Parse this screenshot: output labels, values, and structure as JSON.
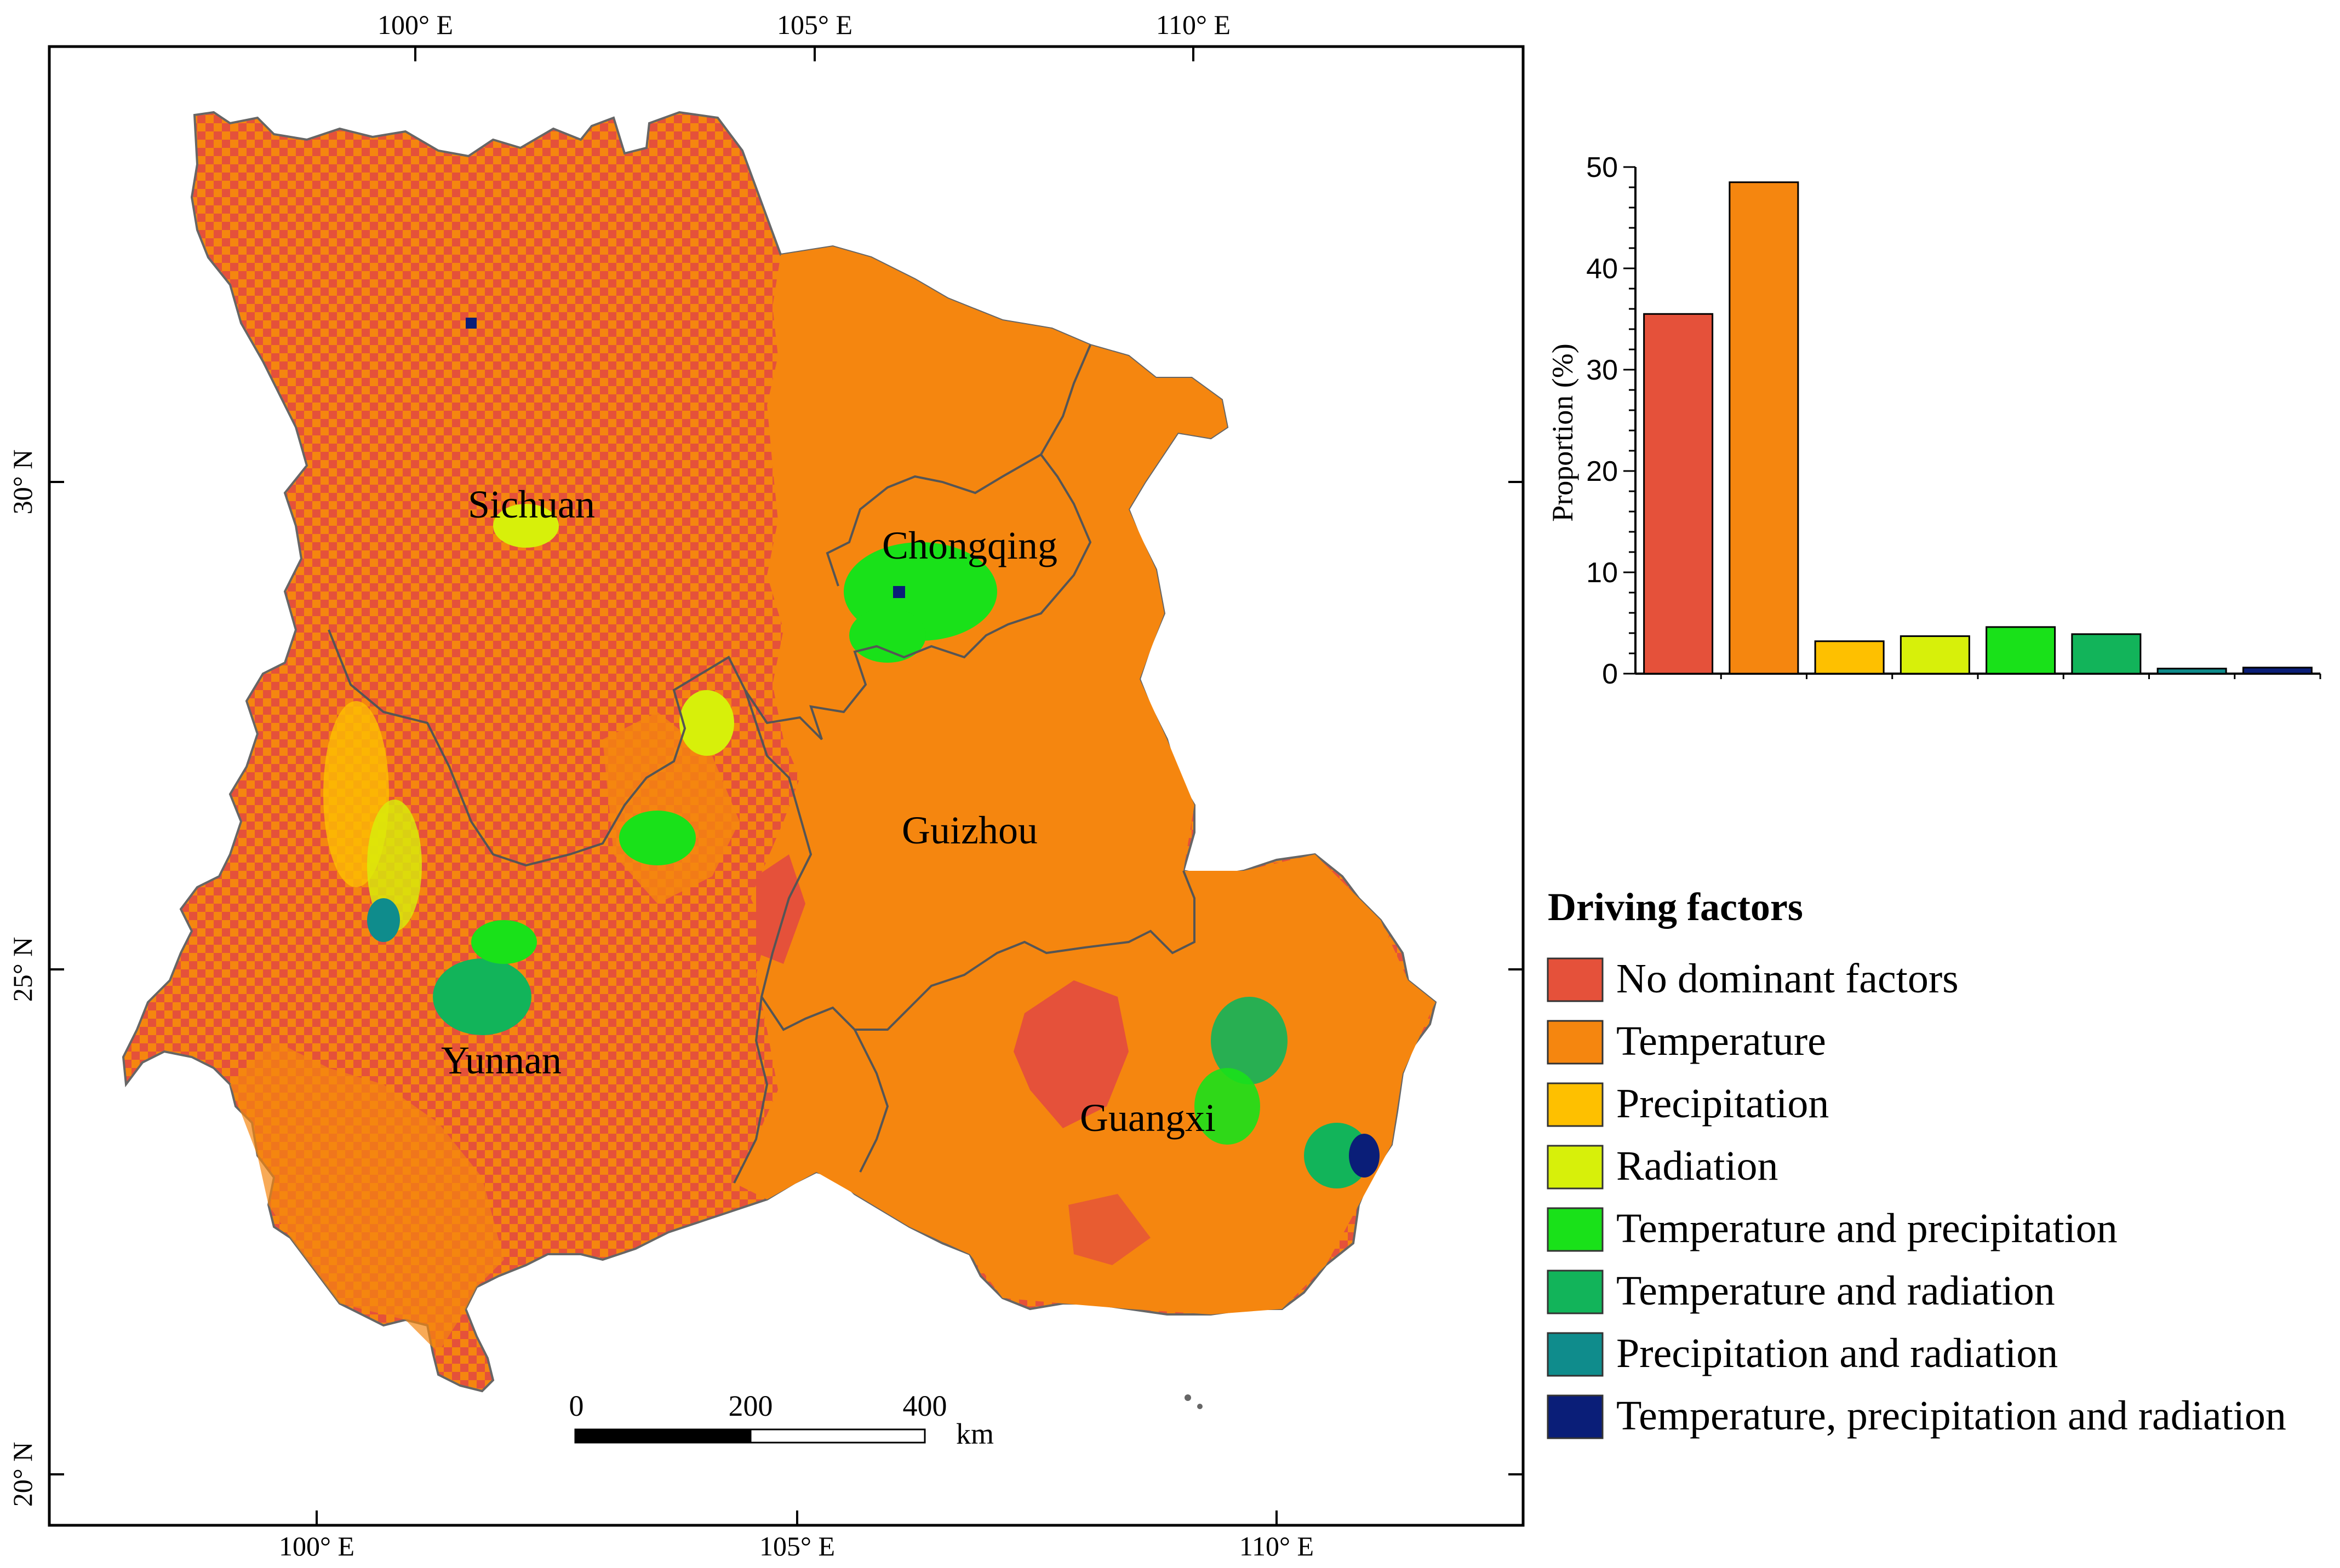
{
  "map": {
    "regions": [
      {
        "name": "Sichuan"
      },
      {
        "name": "Chongqing"
      },
      {
        "name": "Guizhou"
      },
      {
        "name": "Yunnan"
      },
      {
        "name": "Guangxi"
      }
    ],
    "top_lon_labels": [
      "100°  E",
      "105°  E",
      "110°  E"
    ],
    "bottom_lon_labels": [
      "100°  E",
      "105°  E",
      "110°  E"
    ],
    "lat_labels": [
      "30°  N",
      "25°  N",
      "20°  N"
    ],
    "scale_bar": {
      "ticks": [
        "0",
        "200",
        "400"
      ],
      "unit": "km"
    },
    "colors": {
      "background": "#e5513a",
      "temperature": "#f5860f"
    }
  },
  "legend": {
    "title": "Driving factors",
    "items": [
      {
        "label": "No dominant factors",
        "color": "#e5513a"
      },
      {
        "label": "Temperature",
        "color": "#f5860f"
      },
      {
        "label": "Precipitation",
        "color": "#fec000"
      },
      {
        "label": "Radiation",
        "color": "#d7f00a"
      },
      {
        "label": "Temperature and precipitation",
        "color": "#19e119"
      },
      {
        "label": "Temperature and radiation",
        "color": "#12b45a"
      },
      {
        "label": "Precipitation and radiation",
        "color": "#0f8c8c"
      },
      {
        "label": "Temperature, precipitation and radiation",
        "color": "#0a1e78"
      }
    ]
  },
  "chart_data": {
    "type": "bar",
    "categories": [
      "No dominant factors",
      "Temperature",
      "Precipitation",
      "Radiation",
      "Temperature and precipitation",
      "Temperature and radiation",
      "Precipitation and radiation",
      "Temperature, precipitation and radiation"
    ],
    "values": [
      35.5,
      48.5,
      3.2,
      3.7,
      4.6,
      3.9,
      0.5,
      0.6
    ],
    "colors": [
      "#e5513a",
      "#f5860f",
      "#fec000",
      "#d7f00a",
      "#19e119",
      "#12b45a",
      "#0f8c8c",
      "#0a1e78"
    ],
    "ylabel": "Proportion (%)",
    "yticks": [
      "0",
      "10",
      "20",
      "30",
      "40",
      "50"
    ],
    "ylim": [
      0,
      50
    ]
  }
}
